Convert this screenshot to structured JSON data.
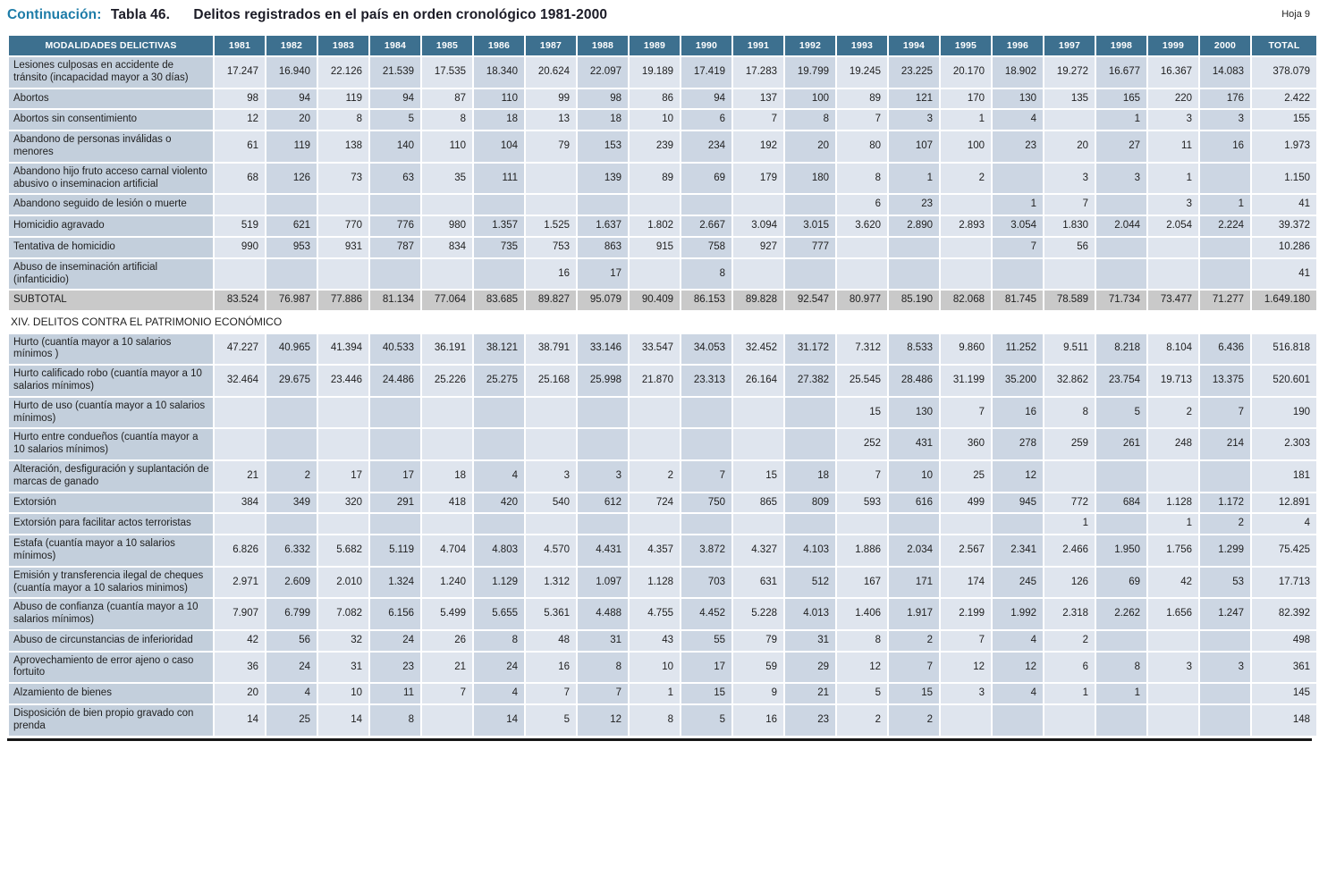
{
  "page": {
    "title_prefix": "Continuación:",
    "title_table": "Tabla 46.",
    "title_text": "Delitos registrados en el país en orden cronológico 1981-2000",
    "sheet_label": "Hoja 9"
  },
  "colors": {
    "header_bg": "#3d708f",
    "label_column_bg": "#c3cfdc",
    "year_column_light": "#dfe5ee",
    "year_column_dark": "#ccd6e3",
    "subtotal_bg": "#c9c9c9",
    "title_accent": "#1d7ca8"
  },
  "table": {
    "columns": [
      "MODALIDADES DELICTIVAS",
      "1981",
      "1982",
      "1983",
      "1984",
      "1985",
      "1986",
      "1987",
      "1988",
      "1989",
      "1990",
      "1991",
      "1992",
      "1993",
      "1994",
      "1995",
      "1996",
      "1997",
      "1998",
      "1999",
      "2000",
      "TOTAL"
    ],
    "rows": [
      {
        "type": "data",
        "label": "Lesiones culposas en accidente de tránsito (incapacidad mayor a 30 días)",
        "values": [
          "17.247",
          "16.940",
          "22.126",
          "21.539",
          "17.535",
          "18.340",
          "20.624",
          "22.097",
          "19.189",
          "17.419",
          "17.283",
          "19.799",
          "19.245",
          "23.225",
          "20.170",
          "18.902",
          "19.272",
          "16.677",
          "16.367",
          "14.083",
          "378.079"
        ]
      },
      {
        "type": "data",
        "label": "Abortos",
        "values": [
          "98",
          "94",
          "119",
          "94",
          "87",
          "110",
          "99",
          "98",
          "86",
          "94",
          "137",
          "100",
          "89",
          "121",
          "170",
          "130",
          "135",
          "165",
          "220",
          "176",
          "2.422"
        ]
      },
      {
        "type": "data",
        "label": "Abortos sin consentimiento",
        "values": [
          "12",
          "20",
          "8",
          "5",
          "8",
          "18",
          "13",
          "18",
          "10",
          "6",
          "7",
          "8",
          "7",
          "3",
          "1",
          "4",
          "",
          "1",
          "3",
          "3",
          "155"
        ]
      },
      {
        "type": "data",
        "label": "Abandono de personas inválidas o menores",
        "values": [
          "61",
          "119",
          "138",
          "140",
          "110",
          "104",
          "79",
          "153",
          "239",
          "234",
          "192",
          "20",
          "80",
          "107",
          "100",
          "23",
          "20",
          "27",
          "11",
          "16",
          "1.973"
        ]
      },
      {
        "type": "data",
        "label": "Abandono hijo fruto acceso carnal violento abusivo o inseminacion artificial",
        "values": [
          "68",
          "126",
          "73",
          "63",
          "35",
          "111",
          "",
          "139",
          "89",
          "69",
          "179",
          "180",
          "8",
          "1",
          "2",
          "",
          "3",
          "3",
          "1",
          "",
          "1.150"
        ]
      },
      {
        "type": "data",
        "label": "Abandono seguido de lesión o muerte",
        "values": [
          "",
          "",
          "",
          "",
          "",
          "",
          "",
          "",
          "",
          "",
          "",
          "",
          "6",
          "23",
          "",
          "1",
          "7",
          "",
          "3",
          "1",
          "41"
        ]
      },
      {
        "type": "data",
        "label": "Homicidio agravado",
        "values": [
          "519",
          "621",
          "770",
          "776",
          "980",
          "1.357",
          "1.525",
          "1.637",
          "1.802",
          "2.667",
          "3.094",
          "3.015",
          "3.620",
          "2.890",
          "2.893",
          "3.054",
          "1.830",
          "2.044",
          "2.054",
          "2.224",
          "39.372"
        ]
      },
      {
        "type": "data",
        "label": "Tentativa de homicidio",
        "values": [
          "990",
          "953",
          "931",
          "787",
          "834",
          "735",
          "753",
          "863",
          "915",
          "758",
          "927",
          "777",
          "",
          "",
          "",
          "7",
          "56",
          "",
          "",
          "",
          "10.286"
        ]
      },
      {
        "type": "data",
        "label": "Abuso de inseminación artificial (infanticidio)",
        "values": [
          "",
          "",
          "",
          "",
          "",
          "",
          "16",
          "17",
          "",
          "8",
          "",
          "",
          "",
          "",
          "",
          "",
          "",
          "",
          "",
          "",
          "41"
        ]
      },
      {
        "type": "subtotal",
        "label": "SUBTOTAL",
        "values": [
          "83.524",
          "76.987",
          "77.886",
          "81.134",
          "77.064",
          "83.685",
          "89.827",
          "95.079",
          "90.409",
          "86.153",
          "89.828",
          "92.547",
          "80.977",
          "85.190",
          "82.068",
          "81.745",
          "78.589",
          "71.734",
          "73.477",
          "71.277",
          "1.649.180"
        ]
      },
      {
        "type": "section",
        "label": "XIV. DELITOS CONTRA EL PATRIMONIO ECONÓMICO"
      },
      {
        "type": "data",
        "label": "Hurto (cuantía mayor a 10 salarios mínimos )",
        "values": [
          "47.227",
          "40.965",
          "41.394",
          "40.533",
          "36.191",
          "38.121",
          "38.791",
          "33.146",
          "33.547",
          "34.053",
          "32.452",
          "31.172",
          "7.312",
          "8.533",
          "9.860",
          "11.252",
          "9.511",
          "8.218",
          "8.104",
          "6.436",
          "516.818"
        ]
      },
      {
        "type": "data",
        "label": "Hurto calificado robo (cuantía mayor a 10 salarios mínimos)",
        "values": [
          "32.464",
          "29.675",
          "23.446",
          "24.486",
          "25.226",
          "25.275",
          "25.168",
          "25.998",
          "21.870",
          "23.313",
          "26.164",
          "27.382",
          "25.545",
          "28.486",
          "31.199",
          "35.200",
          "32.862",
          "23.754",
          "19.713",
          "13.375",
          "520.601"
        ]
      },
      {
        "type": "data",
        "label": "Hurto de uso (cuantía mayor a 10 salarios mínimos)",
        "values": [
          "",
          "",
          "",
          "",
          "",
          "",
          "",
          "",
          "",
          "",
          "",
          "",
          "15",
          "130",
          "7",
          "16",
          "8",
          "5",
          "2",
          "7",
          "190"
        ]
      },
      {
        "type": "data",
        "label": "Hurto entre condueños (cuantía mayor a 10 salarios mínimos)",
        "values": [
          "",
          "",
          "",
          "",
          "",
          "",
          "",
          "",
          "",
          "",
          "",
          "",
          "252",
          "431",
          "360",
          "278",
          "259",
          "261",
          "248",
          "214",
          "2.303"
        ]
      },
      {
        "type": "data",
        "label": "Alteración, desfiguración y suplantación de marcas de ganado",
        "values": [
          "21",
          "2",
          "17",
          "17",
          "18",
          "4",
          "3",
          "3",
          "2",
          "7",
          "15",
          "18",
          "7",
          "10",
          "25",
          "12",
          "",
          "",
          "",
          "",
          "181"
        ]
      },
      {
        "type": "data",
        "label": "Extorsión",
        "values": [
          "384",
          "349",
          "320",
          "291",
          "418",
          "420",
          "540",
          "612",
          "724",
          "750",
          "865",
          "809",
          "593",
          "616",
          "499",
          "945",
          "772",
          "684",
          "1.128",
          "1.172",
          "12.891"
        ]
      },
      {
        "type": "data",
        "label": "Extorsión para facilitar actos terroristas",
        "values": [
          "",
          "",
          "",
          "",
          "",
          "",
          "",
          "",
          "",
          "",
          "",
          "",
          "",
          "",
          "",
          "",
          "1",
          "",
          "1",
          "2",
          "4"
        ]
      },
      {
        "type": "data",
        "label": "Estafa (cuantía mayor a 10 salarios mínimos)",
        "values": [
          "6.826",
          "6.332",
          "5.682",
          "5.119",
          "4.704",
          "4.803",
          "4.570",
          "4.431",
          "4.357",
          "3.872",
          "4.327",
          "4.103",
          "1.886",
          "2.034",
          "2.567",
          "2.341",
          "2.466",
          "1.950",
          "1.756",
          "1.299",
          "75.425"
        ]
      },
      {
        "type": "data",
        "label": "Emisión y transferencia ilegal de cheques (cuantía mayor a 10 salarios minimos)",
        "values": [
          "2.971",
          "2.609",
          "2.010",
          "1.324",
          "1.240",
          "1.129",
          "1.312",
          "1.097",
          "1.128",
          "703",
          "631",
          "512",
          "167",
          "171",
          "174",
          "245",
          "126",
          "69",
          "42",
          "53",
          "17.713"
        ]
      },
      {
        "type": "data",
        "label": "Abuso de confianza (cuantía mayor a 10 salarios mínimos)",
        "values": [
          "7.907",
          "6.799",
          "7.082",
          "6.156",
          "5.499",
          "5.655",
          "5.361",
          "4.488",
          "4.755",
          "4.452",
          "5.228",
          "4.013",
          "1.406",
          "1.917",
          "2.199",
          "1.992",
          "2.318",
          "2.262",
          "1.656",
          "1.247",
          "82.392"
        ]
      },
      {
        "type": "data",
        "label": "Abuso de circunstancias de inferioridad",
        "values": [
          "42",
          "56",
          "32",
          "24",
          "26",
          "8",
          "48",
          "31",
          "43",
          "55",
          "79",
          "31",
          "8",
          "2",
          "7",
          "4",
          "2",
          "",
          "",
          "",
          "498"
        ]
      },
      {
        "type": "data",
        "label": "Aprovechamiento de error ajeno o caso fortuito",
        "values": [
          "36",
          "24",
          "31",
          "23",
          "21",
          "24",
          "16",
          "8",
          "10",
          "17",
          "59",
          "29",
          "12",
          "7",
          "12",
          "12",
          "6",
          "8",
          "3",
          "3",
          "361"
        ]
      },
      {
        "type": "data",
        "label": "Alzamiento de bienes",
        "values": [
          "20",
          "4",
          "10",
          "11",
          "7",
          "4",
          "7",
          "7",
          "1",
          "15",
          "9",
          "21",
          "5",
          "15",
          "3",
          "4",
          "1",
          "1",
          "",
          "",
          "145"
        ]
      },
      {
        "type": "data",
        "label": "Disposición de bien propio gravado con prenda",
        "values": [
          "14",
          "25",
          "14",
          "8",
          "",
          "14",
          "5",
          "12",
          "8",
          "5",
          "16",
          "23",
          "2",
          "2",
          "",
          "",
          "",
          "",
          "",
          "",
          "148"
        ]
      }
    ]
  }
}
